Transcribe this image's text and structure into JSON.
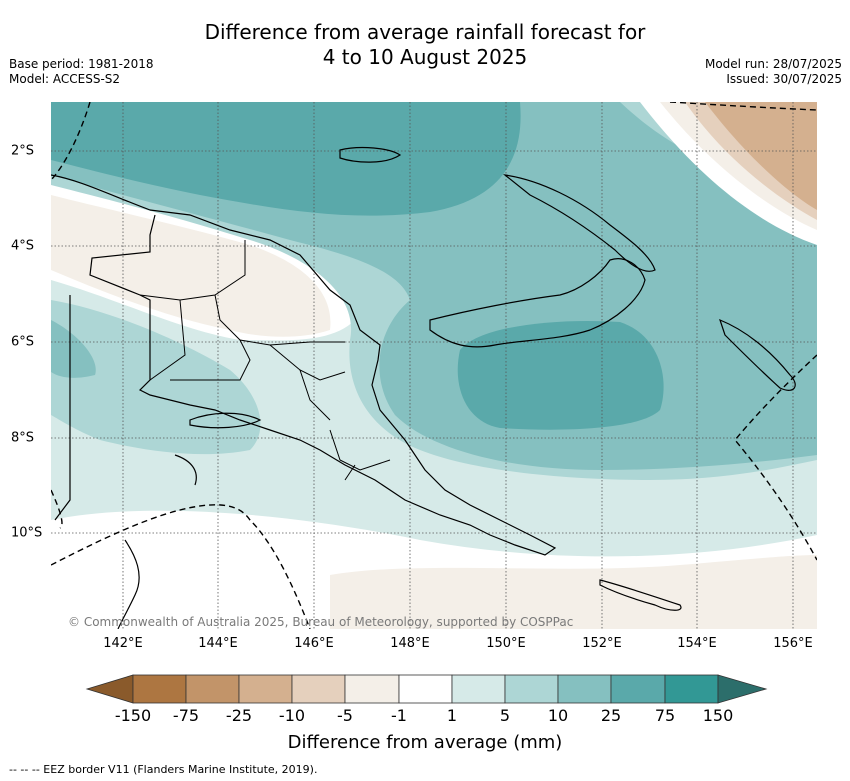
{
  "header": {
    "title_line1": "Difference from average rainfall forecast for",
    "title_line2": "4 to 10 August 2025",
    "base_period": "Base period: 1981-2018",
    "model": "Model: ACCESS-S2",
    "model_run": "Model run: 28/07/2025",
    "issued": "Issued: 30/07/2025"
  },
  "map": {
    "copyright": "© Commonwealth of Australia 2025, Bureau of Meteorology, supported by COSPPac",
    "x_ticks": [
      "142°E",
      "144°E",
      "146°E",
      "148°E",
      "150°E",
      "152°E",
      "154°E",
      "156°E"
    ],
    "y_ticks": [
      "2°S",
      "4°S",
      "6°S",
      "8°S",
      "10°S"
    ]
  },
  "colorbar": {
    "title": "Difference from average (mm)",
    "labels": [
      "-150",
      "-75",
      "-25",
      "-10",
      "-5",
      "-1",
      "1",
      "5",
      "10",
      "25",
      "75",
      "150"
    ],
    "colors": {
      "lt_-150": "#8a5a2b",
      "-150_-75": "#ad7641",
      "-75_-25": "#c29469",
      "-25_-10": "#d4b08f",
      "-10_-5": "#e5d0bd",
      "-5_-1": "#f4efe8",
      "-1_1": "#ffffff",
      "1_5": "#d6eae8",
      "5_10": "#add6d5",
      "10_25": "#85c0c0",
      "25_75": "#5aa9aa",
      "75_150": "#329895",
      "gt_150": "#2c6e6b"
    }
  },
  "footer": {
    "legend": "--  --  -- EEZ border V11 (Flanders Marine Institute, 2019)."
  }
}
